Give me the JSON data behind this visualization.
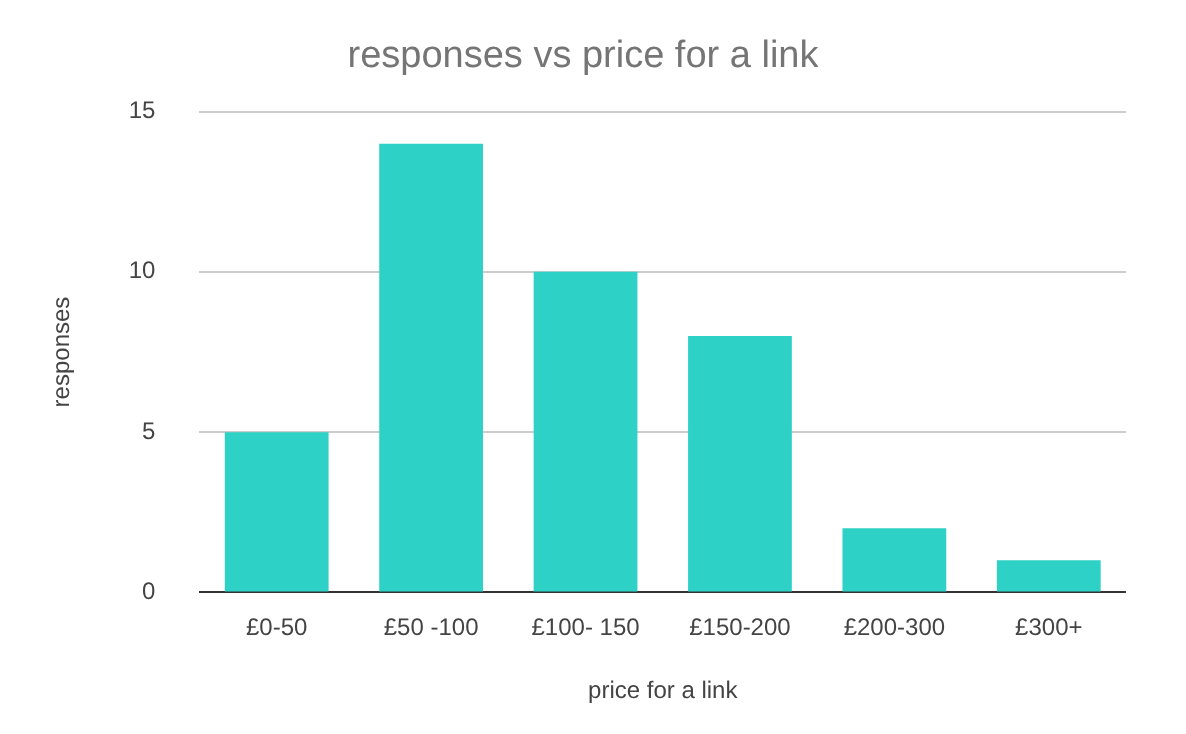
{
  "chart_data": {
    "type": "bar",
    "title": "responses vs price for a link",
    "xlabel": "price for a link",
    "ylabel": "responses",
    "categories": [
      "£0-50",
      "£50 -100",
      "£100- 150",
      "£150-200",
      "£200-300",
      "£300+"
    ],
    "values": [
      5,
      14,
      10,
      8,
      2,
      1
    ],
    "color": "#2ed1c5",
    "ylim": [
      0,
      15
    ],
    "yticks": [
      0,
      5,
      10,
      15
    ],
    "grid": "y"
  }
}
